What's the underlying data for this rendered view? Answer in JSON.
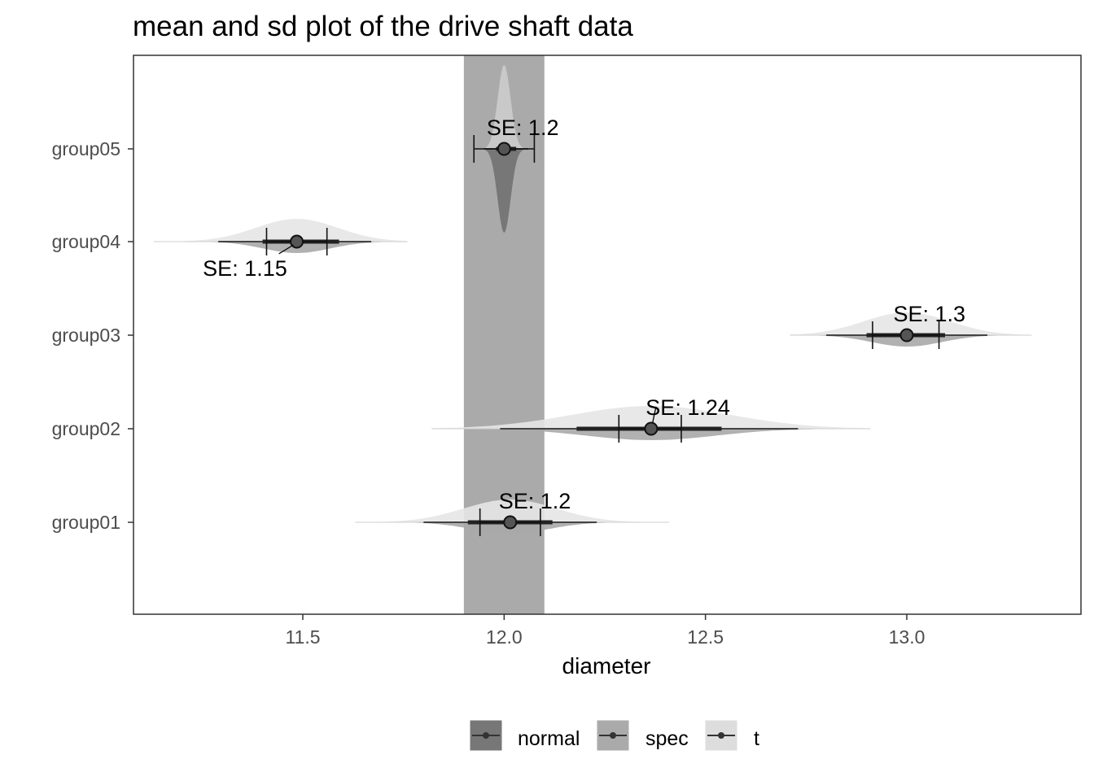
{
  "chart_data": {
    "type": "interval",
    "title": "mean and sd plot of the drive shaft data",
    "xlabel": "diameter",
    "ylabel": "",
    "xlim": [
      11.08,
      13.43
    ],
    "x_ticks": [
      "11.5",
      "12.0",
      "12.5",
      "13.0"
    ],
    "x_tick_values": [
      11.5,
      12.0,
      12.5,
      13.0
    ],
    "categories": [
      "group01",
      "group02",
      "group03",
      "group04",
      "group05"
    ],
    "spec_band": {
      "name": "spec",
      "from": 11.9,
      "to": 12.1,
      "color": "#aaaaaa"
    },
    "groups": [
      {
        "name": "group01",
        "mean": 12.015,
        "se_low": 11.94,
        "se_high": 12.09,
        "q66": [
          11.91,
          12.12
        ],
        "q95": [
          11.8,
          12.23
        ],
        "range": [
          11.63,
          12.41
        ],
        "label": "SE: 1.2",
        "label_x": 12.015,
        "label_side": "above"
      },
      {
        "name": "group02",
        "mean": 12.365,
        "se_low": 12.285,
        "se_high": 12.44,
        "q66": [
          12.18,
          12.54
        ],
        "q95": [
          11.99,
          12.73
        ],
        "range": [
          11.82,
          12.91
        ],
        "label": "SE: 1.24",
        "label_x": 12.38,
        "label_side": "above"
      },
      {
        "name": "group03",
        "mean": 13.0,
        "se_low": 12.915,
        "se_high": 13.08,
        "q66": [
          12.9,
          13.095
        ],
        "q95": [
          12.8,
          13.2
        ],
        "range": [
          12.71,
          13.31
        ],
        "label": "SE: 1.3",
        "label_x": 12.995,
        "label_side": "above"
      },
      {
        "name": "group04",
        "mean": 11.485,
        "se_low": 11.41,
        "se_high": 11.56,
        "q66": [
          11.4,
          11.59
        ],
        "q95": [
          11.29,
          11.67
        ],
        "range": [
          11.13,
          11.76
        ],
        "label": "SE: 1.15",
        "label_x": 11.28,
        "label_side": "below"
      },
      {
        "name": "group05",
        "mean": 12.0,
        "se_low": 11.925,
        "se_high": 12.075,
        "q66": [
          11.98,
          12.03
        ],
        "q95": [
          11.95,
          12.06
        ],
        "range": [
          11.93,
          12.07
        ],
        "label": "SE: 1.2",
        "label_x": 11.985,
        "label_side": "above"
      }
    ],
    "legend": {
      "position": "bottom",
      "items": [
        {
          "label": "normal",
          "color": "#777777"
        },
        {
          "label": "spec",
          "color": "#aaaaaa"
        },
        {
          "label": "t",
          "color": "#dddddd"
        }
      ]
    },
    "colors": {
      "normal": "#777777",
      "spec": "#aaaaaa",
      "t": "#e6e6e6"
    },
    "grid": false
  }
}
